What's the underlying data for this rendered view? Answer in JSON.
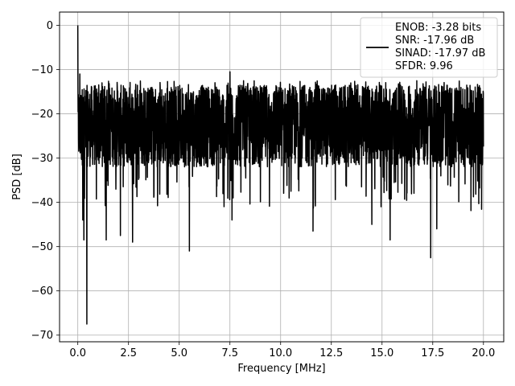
{
  "chart_data": {
    "type": "line",
    "title": "",
    "xlabel": "Frequency [MHz]",
    "ylabel": "PSD [dB]",
    "xlim": [
      -0.9,
      21.0
    ],
    "ylim": [
      -71.5,
      3.0
    ],
    "x_ticks": [
      0.0,
      2.5,
      5.0,
      7.5,
      10.0,
      12.5,
      15.0,
      17.5,
      20.0
    ],
    "x_tick_labels": [
      "0.0",
      "2.5",
      "5.0",
      "7.5",
      "10.0",
      "12.5",
      "15.0",
      "17.5",
      "20.0"
    ],
    "y_ticks": [
      0,
      -10,
      -20,
      -30,
      -40,
      -50,
      -60,
      -70
    ],
    "y_tick_labels": [
      "0",
      "−10",
      "−20",
      "−30",
      "−40",
      "−50",
      "−60",
      "−70"
    ],
    "grid": true,
    "legend_placement": "top-right",
    "line_color": "#000000",
    "legend": [
      "ENOB: -3.28 bits",
      "SNR: -17.96 dB",
      "SINAD: -17.97 dB",
      "SFDR: 9.96"
    ],
    "series": [
      {
        "x_range": [
          0.0,
          20.0
        ],
        "mean": -23.0,
        "upper_envelope": -13.5,
        "lower_envelope": -32.0,
        "peaks": [
          {
            "x": 0.0,
            "y": 0.0
          },
          {
            "x": 0.1,
            "y": -11.0
          },
          {
            "x": 7.5,
            "y": -10.5
          }
        ],
        "dips": [
          {
            "x": 0.25,
            "y": -44.0
          },
          {
            "x": 0.3,
            "y": -48.5
          },
          {
            "x": 0.45,
            "y": -67.5
          },
          {
            "x": 1.4,
            "y": -48.5
          },
          {
            "x": 2.1,
            "y": -47.5
          },
          {
            "x": 2.7,
            "y": -49.0
          },
          {
            "x": 5.5,
            "y": -51.0
          },
          {
            "x": 7.6,
            "y": -44.0
          },
          {
            "x": 11.6,
            "y": -46.5
          },
          {
            "x": 14.5,
            "y": -45.0
          },
          {
            "x": 15.4,
            "y": -48.5
          },
          {
            "x": 17.4,
            "y": -52.5
          },
          {
            "x": 17.7,
            "y": -46.0
          }
        ]
      }
    ]
  }
}
